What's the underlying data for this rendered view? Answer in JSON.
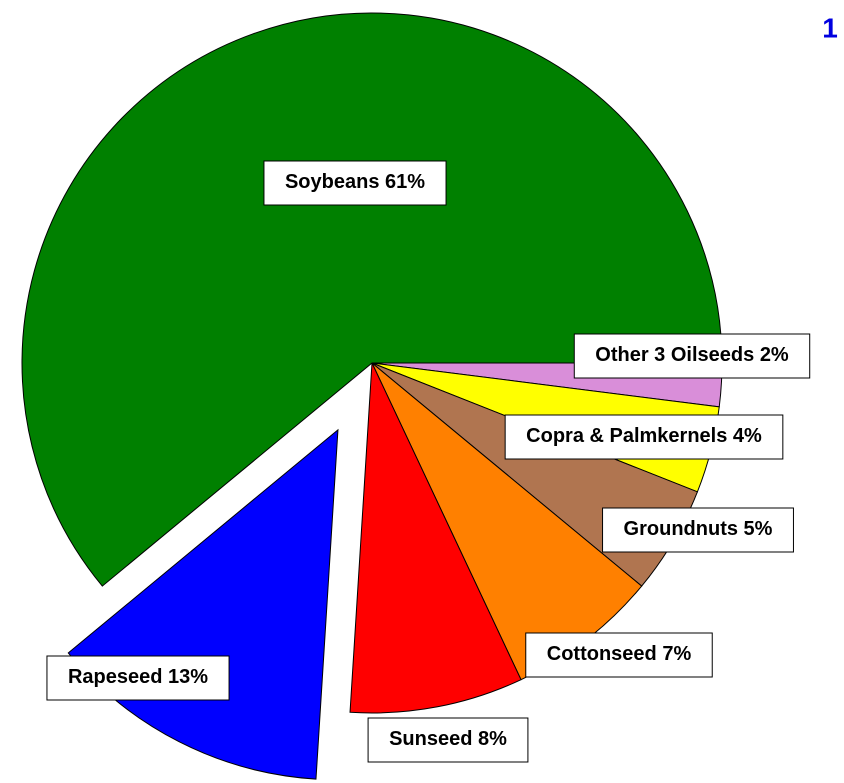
{
  "chart_data": {
    "type": "pie",
    "page_number": "1",
    "categories": [
      "Other 3 Oilseeds",
      "Copra & Palmkernels",
      "Groundnuts",
      "Cottonseed",
      "Sunseed",
      "Rapeseed",
      "Soybeans"
    ],
    "values": [
      2,
      4,
      5,
      7,
      8,
      13,
      61
    ],
    "value_labels": [
      "2%",
      "4%",
      "5%",
      "7%",
      "8%",
      "13%",
      "61%"
    ],
    "colors": [
      "#d98ed9",
      "#ffff00",
      "#b07550",
      "#ff8000",
      "#ff0000",
      "#0000ff",
      "#008000"
    ],
    "exploded": [
      "Rapeseed"
    ]
  }
}
